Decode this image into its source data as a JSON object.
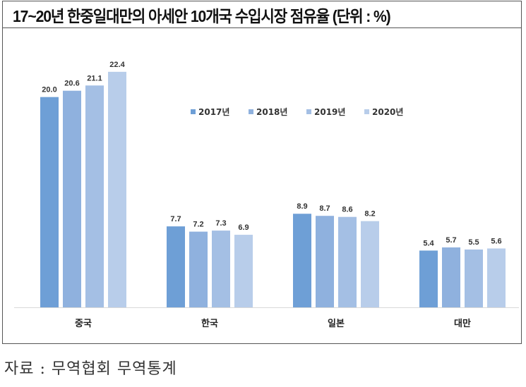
{
  "chart_data": {
    "type": "bar",
    "title": "17~20년 한중일대만의 아세안 10개국 수입시장 점유율 (단위 : %)",
    "categories": [
      "중국",
      "한국",
      "일본",
      "대만"
    ],
    "series": [
      {
        "name": "2017년",
        "color": "#6e9fd6",
        "values": [
          20.0,
          7.7,
          8.9,
          5.4
        ]
      },
      {
        "name": "2018년",
        "color": "#8fb1de",
        "values": [
          20.6,
          7.2,
          8.7,
          5.7
        ]
      },
      {
        "name": "2019년",
        "color": "#a4bfe4",
        "values": [
          21.1,
          7.3,
          8.6,
          5.5
        ]
      },
      {
        "name": "2020년",
        "color": "#b8cdea",
        "values": [
          22.4,
          6.9,
          8.2,
          5.6
        ]
      }
    ],
    "ylim": [
      0,
      24
    ],
    "grid": false,
    "legend": "top-center",
    "data_labels": true
  },
  "source": "자료 : 무역협회 무역통계"
}
